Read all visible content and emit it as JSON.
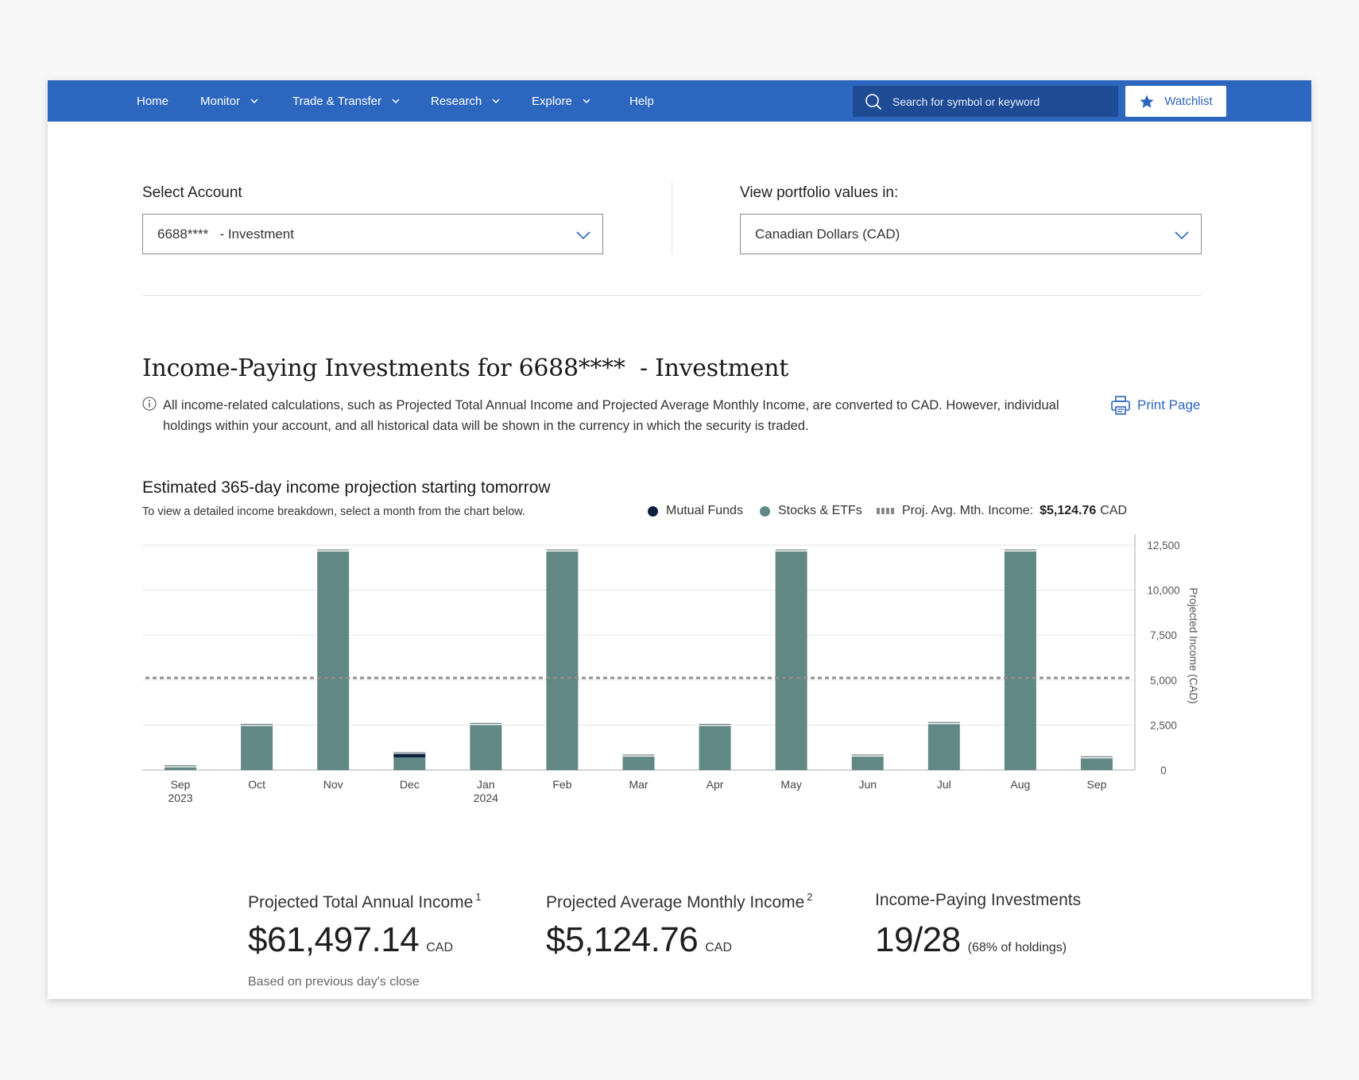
{
  "nav": {
    "items": [
      {
        "label": "Home",
        "has_menu": false
      },
      {
        "label": "Monitor",
        "has_menu": true
      },
      {
        "label": "Trade & Transfer",
        "has_menu": true
      },
      {
        "label": "Research",
        "has_menu": true
      },
      {
        "label": "Explore",
        "has_menu": true
      },
      {
        "label": "Help",
        "has_menu": false
      }
    ],
    "search_placeholder": "Search for symbol or keyword",
    "watchlist_label": "Watchlist",
    "bar_color": "#2c66be"
  },
  "account": {
    "label": "Select Account",
    "value": "6688****   - Investment"
  },
  "currency": {
    "label": "View portfolio values in:",
    "value": "Canadian Dollars (CAD)"
  },
  "page": {
    "title": "Income-Paying Investments for 6688****  - Investment",
    "info_text": "All income-related calculations, such as Projected Total Annual Income and Projected Average Monthly Income, are converted to CAD. However, individual holdings within your account, and all historical data will be shown in the currency in which the security is traded.",
    "print_label": "Print Page"
  },
  "chart_section": {
    "title": "Estimated 365-day income projection starting tomorrow",
    "subtitle": "To view a detailed income breakdown, select a month from the chart below.",
    "legend": {
      "mutual_funds": "Mutual Funds",
      "stocks_etfs": "Stocks & ETFs",
      "avg_label": "Proj. Avg. Mth. Income:",
      "avg_value": "$5,124.76",
      "avg_unit": "CAD"
    }
  },
  "chart_data": {
    "type": "bar",
    "stacked": true,
    "categories": [
      "Sep",
      "Oct",
      "Nov",
      "Dec",
      "Jan",
      "Feb",
      "Mar",
      "Apr",
      "May",
      "Jun",
      "Jul",
      "Aug",
      "Sep"
    ],
    "category_years": [
      "2023",
      "",
      "",
      "",
      "2024",
      "",
      "",
      "",
      "",
      "",
      "",
      "",
      ""
    ],
    "series": [
      {
        "name": "Stocks & ETFs",
        "color": "#628886",
        "values": [
          150,
          2450,
          12150,
          700,
          2500,
          12150,
          750,
          2450,
          12150,
          750,
          2550,
          12150,
          650
        ]
      },
      {
        "name": "Mutual Funds",
        "color": "#0d2240",
        "values": [
          0,
          0,
          0,
          200,
          0,
          0,
          0,
          0,
          0,
          0,
          0,
          0,
          0
        ]
      }
    ],
    "reference_line": {
      "name": "Proj. Avg. Mth. Income",
      "value": 5124.76,
      "style": "dashed"
    },
    "ylabel": "Projected Income (CAD)",
    "ylim": [
      0,
      12500
    ],
    "yticks": [
      0,
      2500,
      5000,
      7500,
      10000,
      12500
    ],
    "ytick_labels": [
      "0",
      "2,500",
      "5,000",
      "7,500",
      "10,000",
      "12,500"
    ],
    "y_axis_side": "right",
    "grid": true
  },
  "summary": {
    "total": {
      "label": "Projected Total Annual Income",
      "footnote": "1",
      "value": "$61,497.14",
      "unit": "CAD",
      "note": "Based on previous day's close"
    },
    "average": {
      "label": "Projected Average Monthly Income",
      "footnote": "2",
      "value": "$5,124.76",
      "unit": "CAD"
    },
    "investments": {
      "label": "Income-Paying Investments",
      "value": "19/28",
      "detail": "(68% of holdings)"
    }
  }
}
